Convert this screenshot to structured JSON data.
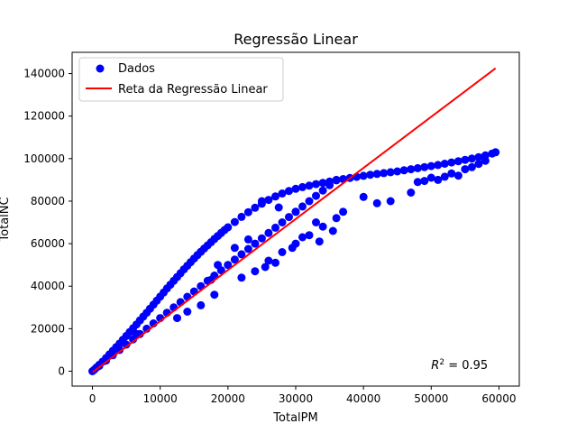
{
  "chart_data": {
    "type": "scatter",
    "title": "Regressão Linear",
    "xlabel": "TotalPM",
    "ylabel": "TotalNC",
    "xlim": [
      -3000,
      63000
    ],
    "ylim": [
      -7000,
      150000
    ],
    "xticks": [
      0,
      10000,
      20000,
      30000,
      40000,
      50000,
      60000
    ],
    "yticks": [
      0,
      20000,
      40000,
      60000,
      80000,
      100000,
      120000,
      140000
    ],
    "grid": false,
    "legend_position": "top-left",
    "annotation": {
      "label": "R",
      "superscript": "2",
      "text": " = 0.95",
      "x": 50000,
      "y": 1000
    },
    "colors": {
      "scatter": "#0000ff",
      "line": "#ff0000"
    },
    "series": [
      {
        "name": "Dados",
        "type": "scatter",
        "x": [
          0,
          300,
          600,
          1000,
          1500,
          2000,
          2500,
          3000,
          3500,
          4000,
          4500,
          5000,
          5500,
          6000,
          6500,
          7000,
          7500,
          8000,
          8500,
          9000,
          9500,
          10000,
          10500,
          11000,
          11500,
          12000,
          12500,
          13000,
          13500,
          14000,
          14500,
          15000,
          15500,
          16000,
          16500,
          17000,
          17500,
          18000,
          18500,
          19000,
          19500,
          20000,
          21000,
          22000,
          23000,
          24000,
          25000,
          26000,
          27000,
          28000,
          29000,
          30000,
          31000,
          32000,
          33000,
          34000,
          35000,
          36000,
          37000,
          38000,
          39000,
          40000,
          41000,
          42000,
          43000,
          44000,
          45000,
          46000,
          47000,
          48000,
          49000,
          50000,
          51000,
          52000,
          53000,
          54000,
          55000,
          56000,
          57000,
          58000,
          59000,
          59500,
          1000,
          2000,
          3000,
          4000,
          5000,
          6000,
          7000,
          8000,
          9000,
          10000,
          11000,
          12000,
          13000,
          14000,
          15000,
          16000,
          17000,
          18000,
          19000,
          20000,
          21000,
          22000,
          23000,
          24000,
          25000,
          26000,
          27000,
          28000,
          29000,
          30000,
          31000,
          32000,
          33000,
          34000,
          35000,
          36000,
          6500,
          12500,
          14000,
          16000,
          18000,
          22000,
          24000,
          26000,
          28000,
          30000,
          32000,
          34000,
          36000,
          37000,
          25500,
          27000,
          29500,
          31000,
          33500,
          35500,
          17500,
          18500,
          21000,
          23000,
          25000,
          27500,
          30000,
          33000,
          40000,
          42000,
          44000,
          47000,
          48000,
          49000,
          50000,
          51000,
          52000,
          53000,
          54000,
          55000,
          56000,
          57000,
          58000
        ],
        "y": [
          0,
          800,
          1800,
          3000,
          4500,
          6200,
          7900,
          9600,
          11300,
          13000,
          14800,
          16600,
          18400,
          20200,
          22000,
          23900,
          25700,
          27500,
          29400,
          31300,
          33200,
          35100,
          37000,
          38900,
          40700,
          42500,
          44300,
          46100,
          47900,
          49600,
          51300,
          53000,
          54600,
          56200,
          57700,
          59200,
          60700,
          62200,
          63600,
          65000,
          66400,
          67700,
          70200,
          72600,
          74800,
          76900,
          78800,
          80600,
          82200,
          83600,
          84800,
          85800,
          86600,
          87300,
          88000,
          88600,
          89200,
          89800,
          90400,
          90900,
          91400,
          91900,
          92400,
          92800,
          93200,
          93600,
          94000,
          94500,
          95000,
          95500,
          96000,
          96500,
          97000,
          97600,
          98200,
          98800,
          99400,
          100000,
          100700,
          101500,
          102400,
          103000,
          2500,
          5000,
          7500,
          10000,
          12500,
          15000,
          17500,
          20000,
          22500,
          25000,
          27500,
          30000,
          32500,
          35000,
          37500,
          40000,
          42500,
          45000,
          47500,
          50000,
          52500,
          55000,
          57500,
          60000,
          62500,
          65000,
          67500,
          70000,
          72500,
          75000,
          77500,
          80000,
          82500,
          85000,
          87500,
          90000,
          17500,
          25000,
          28000,
          31000,
          36000,
          44000,
          47000,
          52000,
          56000,
          60000,
          64000,
          68000,
          72000,
          75000,
          49000,
          51000,
          58000,
          63000,
          61000,
          66000,
          43000,
          50000,
          58000,
          62000,
          80000,
          77000,
          75000,
          70000,
          82000,
          79000,
          80000,
          84000,
          89000,
          89500,
          91000,
          90000,
          91500,
          93000,
          92000,
          95000,
          96000,
          97500,
          99000
        ]
      },
      {
        "name": "Reta da Regressão Linear",
        "type": "line",
        "x": [
          0,
          59500
        ],
        "y": [
          -500,
          142500
        ]
      }
    ]
  }
}
